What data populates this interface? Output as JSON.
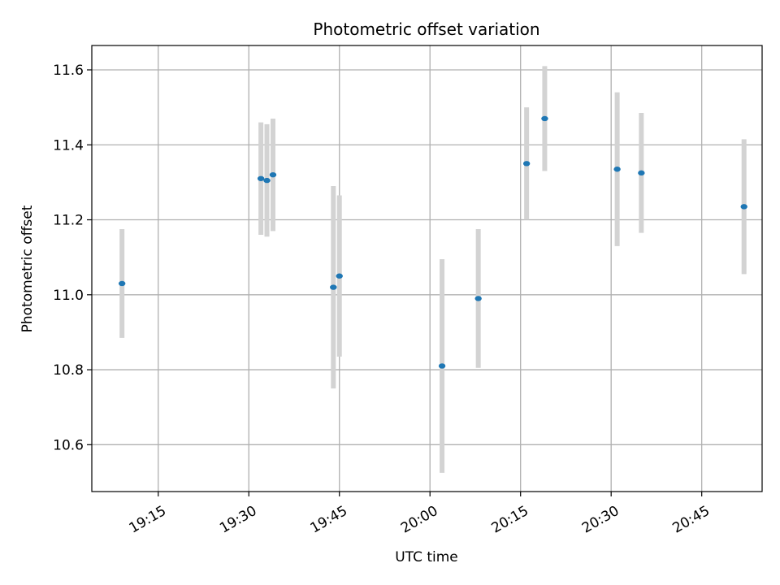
{
  "chart_data": {
    "type": "scatter",
    "title": "Photometric offset variation",
    "xlabel": "UTC time",
    "ylabel": "Photometric offset",
    "grid": true,
    "x_axis_kind": "time",
    "xlim": [
      "19:04",
      "20:55"
    ],
    "ylim": [
      10.475,
      11.665
    ],
    "x_ticks": [
      "19:15",
      "19:30",
      "19:45",
      "20:00",
      "20:15",
      "20:30",
      "20:45"
    ],
    "y_ticks": [
      "10.6",
      "10.8",
      "11.0",
      "11.2",
      "11.4",
      "11.6"
    ],
    "colors": {
      "marker": "#1f77b4",
      "errorbar": "#d3d3d3",
      "grid": "#b0b0b0"
    },
    "series": [
      {
        "points": [
          {
            "x": "19:09",
            "y": 11.03,
            "yerr": 0.145
          },
          {
            "x": "19:32",
            "y": 11.31,
            "yerr": 0.15
          },
          {
            "x": "19:33",
            "y": 11.305,
            "yerr": 0.15
          },
          {
            "x": "19:34",
            "y": 11.32,
            "yerr": 0.15
          },
          {
            "x": "19:44",
            "y": 11.02,
            "yerr": 0.27
          },
          {
            "x": "19:45",
            "y": 11.05,
            "yerr": 0.215
          },
          {
            "x": "20:02",
            "y": 10.81,
            "yerr": 0.285
          },
          {
            "x": "20:08",
            "y": 10.99,
            "yerr": 0.185
          },
          {
            "x": "20:16",
            "y": 11.35,
            "yerr": 0.15
          },
          {
            "x": "20:19",
            "y": 11.47,
            "yerr": 0.14
          },
          {
            "x": "20:31",
            "y": 11.335,
            "yerr": 0.205
          },
          {
            "x": "20:35",
            "y": 11.325,
            "yerr": 0.16
          },
          {
            "x": "20:52",
            "y": 11.235,
            "yerr": 0.18
          }
        ]
      }
    ]
  }
}
